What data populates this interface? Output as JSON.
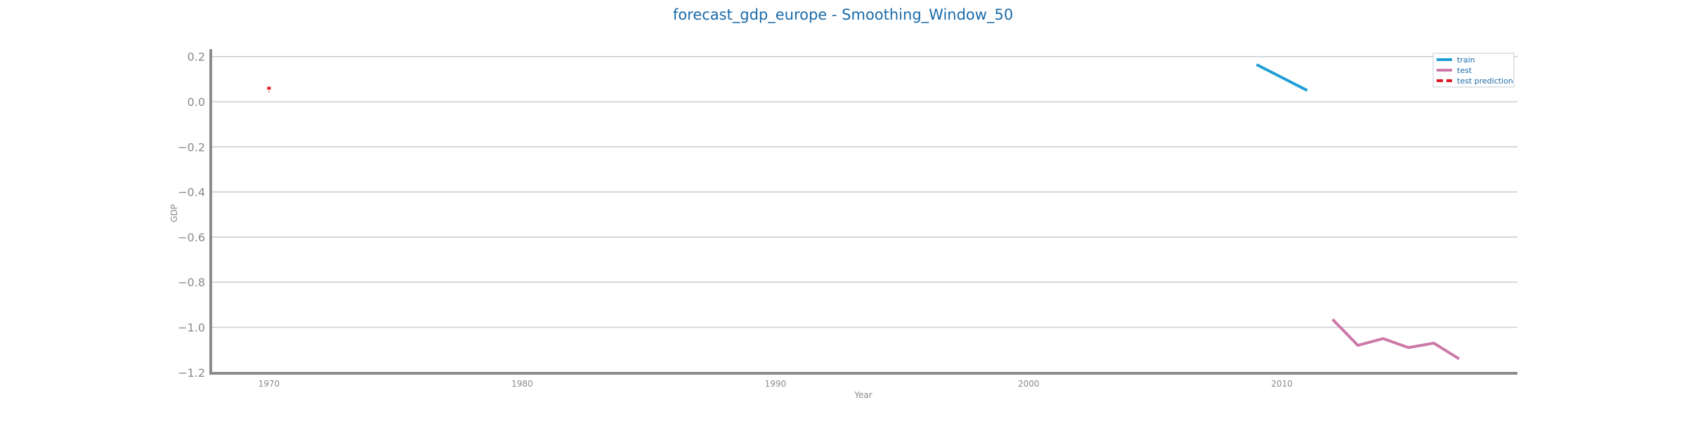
{
  "chart_data": {
    "type": "line",
    "title": "forecast_gdp_europe - Smoothing_Window_50",
    "xlabel": "Year",
    "ylabel": "GDP",
    "xlim": [
      1967.7,
      2019.3
    ],
    "ylim": [
      -1.2,
      0.23
    ],
    "x_ticks": [
      1970,
      1980,
      1990,
      2000,
      2010
    ],
    "y_ticks": [
      0.2,
      0.0,
      -0.2,
      -0.4,
      -0.6,
      -0.8,
      -1.0,
      -1.2
    ],
    "x_tick_labels": [
      "1970",
      "1980",
      "1990",
      "2000",
      "2010"
    ],
    "y_tick_labels": [
      "0.2",
      "0.0",
      "−0.2",
      "−0.4",
      "−0.6",
      "−0.8",
      "−1.0",
      "−1.2"
    ],
    "grid": "horizontal",
    "legend_position": "top-right",
    "series": [
      {
        "name": "train",
        "color": "#1f9ed6",
        "style": "solid",
        "x": [
          2009,
          2011
        ],
        "y": [
          0.165,
          0.05
        ]
      },
      {
        "name": "test",
        "color": "#cc79a7",
        "style": "solid",
        "x": [
          2012,
          2013,
          2014,
          2015,
          2016,
          2017
        ],
        "y": [
          -0.965,
          -1.08,
          -1.05,
          -1.09,
          -1.07,
          -1.14
        ]
      },
      {
        "name": "test prediction",
        "color": "#e0141e",
        "style": "dashed",
        "x": [
          1970,
          1970
        ],
        "y": [
          0.06,
          0.06
        ]
      }
    ]
  }
}
